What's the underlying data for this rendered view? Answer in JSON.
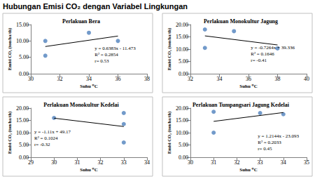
{
  "title": "Hubungan Emisi CO₂ dengan Variabel Lingkungan",
  "chart_data": [
    {
      "type": "scatter",
      "title": "Perlakuan Bera",
      "x_label": "Suhu ⁰C",
      "y_label": "Emisi CO₂ (ton/ha/th)",
      "x": [
        31,
        31,
        34,
        36
      ],
      "values": [
        10,
        5.5,
        12.5,
        10
      ],
      "color": "#4f81bd",
      "marker": "circle",
      "trendline": {
        "x": [
          31,
          36
        ],
        "values": [
          8.3,
          11.5
        ],
        "color": "#000000"
      },
      "annotation": [
        "y = 0.6383x - 11.473",
        "R² = 0.2854",
        "r= 0.53"
      ],
      "xlim": [
        30,
        38
      ],
      "xticks": [
        30,
        32,
        34,
        36,
        38
      ],
      "ylim": [
        0,
        15
      ],
      "yticks": [
        {
          "value": 0,
          "label": "0.00"
        },
        {
          "value": 5,
          "label": "5.00"
        },
        {
          "value": 10,
          "label": "10.00"
        },
        {
          "value": 15,
          "label": "15.00"
        }
      ],
      "grid": false
    },
    {
      "type": "scatter",
      "title": "Perlakuan Monokultur Jagung",
      "x_label": "Suhu ⁰C",
      "y_label": "Emisi CO₂ (ton/ha/th)",
      "x": [
        33,
        35,
        33,
        38
      ],
      "values": [
        18,
        17.3,
        10.5,
        10.3
      ],
      "color": "#4f81bd",
      "marker": "circle",
      "trendline": {
        "x": [
          33,
          38
        ],
        "values": [
          15.4,
          11.7
        ],
        "color": "#000000"
      },
      "annotation": [
        "y = -0.7264x + 39.336",
        "R² = 0.1646",
        "r= -0.41"
      ],
      "xlim": [
        32,
        40
      ],
      "xticks": [
        32,
        34,
        36,
        38,
        40
      ],
      "ylim": [
        0,
        20
      ],
      "yticks": [
        {
          "value": 0,
          "label": "0.00"
        },
        {
          "value": 5,
          "label": "5.00"
        },
        {
          "value": 10,
          "label": "10.00"
        },
        {
          "value": 15,
          "label": "15.00"
        },
        {
          "value": 20,
          "label": "20.00"
        }
      ],
      "grid": false
    },
    {
      "type": "scatter",
      "title": "Perlakuan Monokultur Kedelai",
      "x_label": "Suhu ⁰C",
      "y_label": "Emisi CO₂ (ton/ha/th)",
      "x": [
        30,
        33,
        33,
        33
      ],
      "values": [
        16,
        18,
        13.5,
        6
      ],
      "color": "#4f81bd",
      "marker": "circle",
      "trendline": {
        "x": [
          30,
          33
        ],
        "values": [
          15.9,
          12.5
        ],
        "color": "#000000"
      },
      "annotation": [
        "y = -1.11x + 49.17",
        "R² = 0.1024",
        "r= -0.32"
      ],
      "xlim": [
        29,
        34
      ],
      "xticks": [
        29,
        30,
        31,
        32,
        33,
        34
      ],
      "ylim": [
        0,
        20
      ],
      "yticks": [
        {
          "value": 0,
          "label": "0.00"
        },
        {
          "value": 5,
          "label": "5.00"
        },
        {
          "value": 10,
          "label": "10.00"
        },
        {
          "value": 15,
          "label": "15.00"
        },
        {
          "value": 20,
          "label": "20.00"
        }
      ],
      "grid": false
    },
    {
      "type": "scatter",
      "title": "Perlakuan Tumpangsari Jagung Kedelai",
      "x_label": "Suhu ⁰C",
      "y_label": "Emisi CO₂ (ton/ha/th)",
      "x": [
        31,
        31,
        33,
        34
      ],
      "values": [
        18.5,
        10,
        18,
        17.5
      ],
      "color": "#4f81bd",
      "marker": "circle",
      "trendline": {
        "x": [
          31,
          34
        ],
        "values": [
          14.6,
          18.2
        ],
        "color": "#000000"
      },
      "annotation": [
        "y = 1.2144x - 23.093",
        "R² = 0.2033",
        "r= 0.45"
      ],
      "xlim": [
        30,
        35
      ],
      "xticks": [
        30,
        31,
        32,
        33,
        34,
        35
      ],
      "ylim": [
        0,
        20
      ],
      "yticks": [
        {
          "value": 0,
          "label": "0.00"
        },
        {
          "value": 5,
          "label": "5.00"
        },
        {
          "value": 10,
          "label": "10.00"
        },
        {
          "value": 15,
          "label": "15.00"
        },
        {
          "value": 20,
          "label": "20.00"
        }
      ],
      "grid": false
    }
  ]
}
